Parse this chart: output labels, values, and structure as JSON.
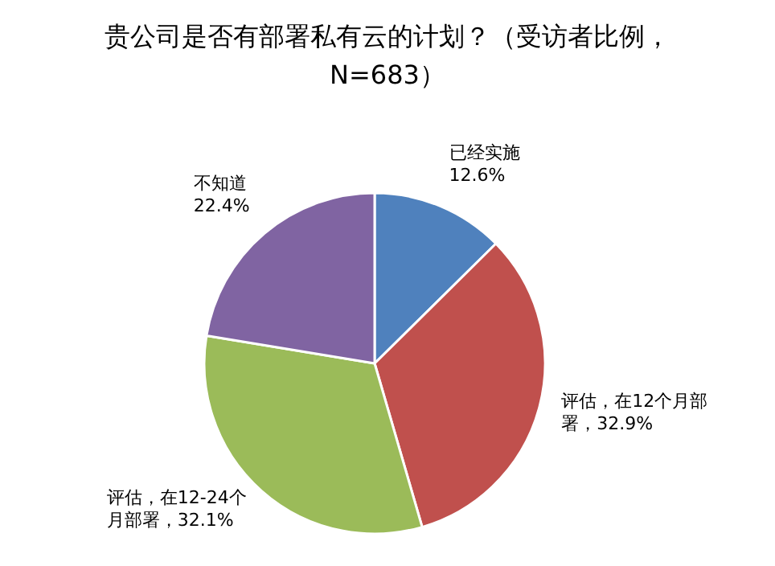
{
  "chart_data": {
    "type": "pie",
    "title": "贵公司是否有部署私有云的计划？（受访者比例，N=683）",
    "categories": [
      "已经实施",
      "评估，在12个月部署",
      "评估，在12-24个月部署",
      "不知道"
    ],
    "values": [
      12.6,
      32.9,
      32.1,
      22.4
    ],
    "value_labels": [
      "12.6%",
      "32.9%",
      "32.1%",
      "22.4%"
    ],
    "colors": [
      "#4f81bd",
      "#c0504d",
      "#9bbb59",
      "#8064a2"
    ]
  }
}
